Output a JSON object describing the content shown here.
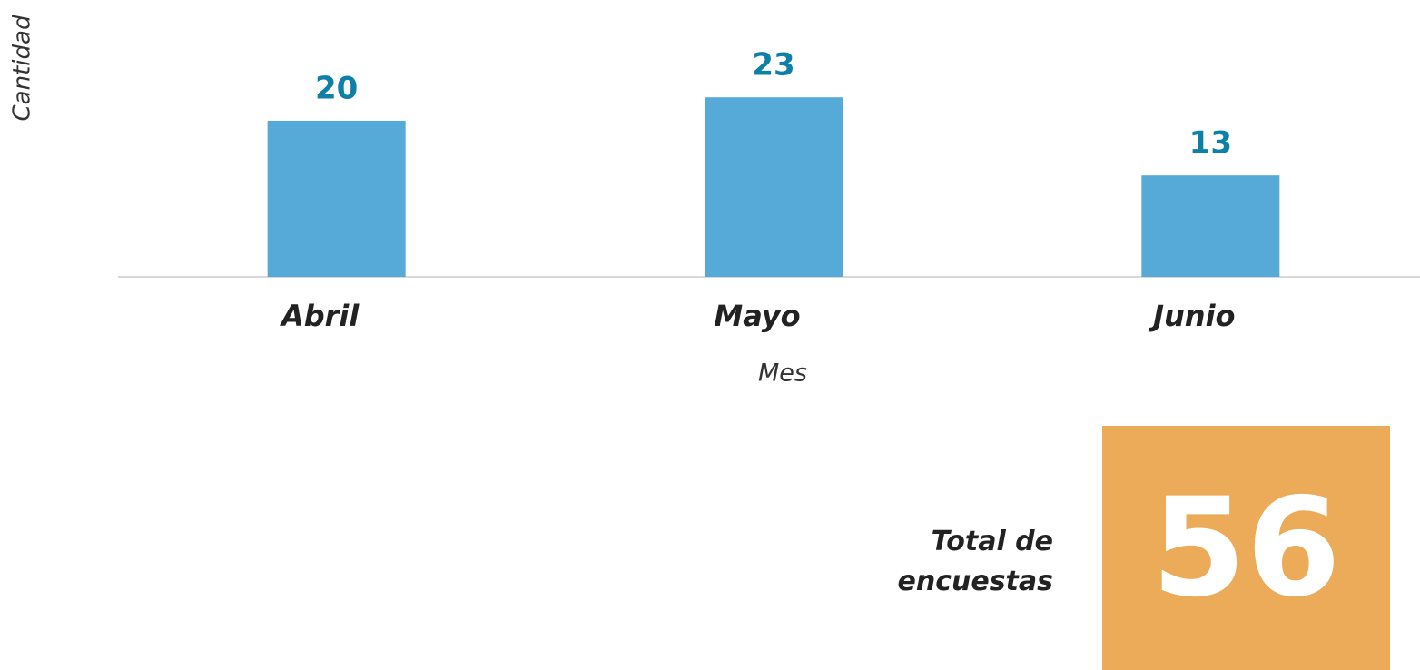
{
  "chart_data": {
    "type": "bar",
    "categories": [
      "Abril",
      "Mayo",
      "Junio"
    ],
    "values": [
      20,
      23,
      13
    ],
    "color": "#55aad8",
    "value_label_color": "#0e7fa6",
    "ylim": [
      0,
      30
    ],
    "ylabel": "Cantidad",
    "xlabel": "Mes"
  },
  "total": {
    "label": "Total de encuestas",
    "value": 56,
    "color": "#ebab58"
  }
}
